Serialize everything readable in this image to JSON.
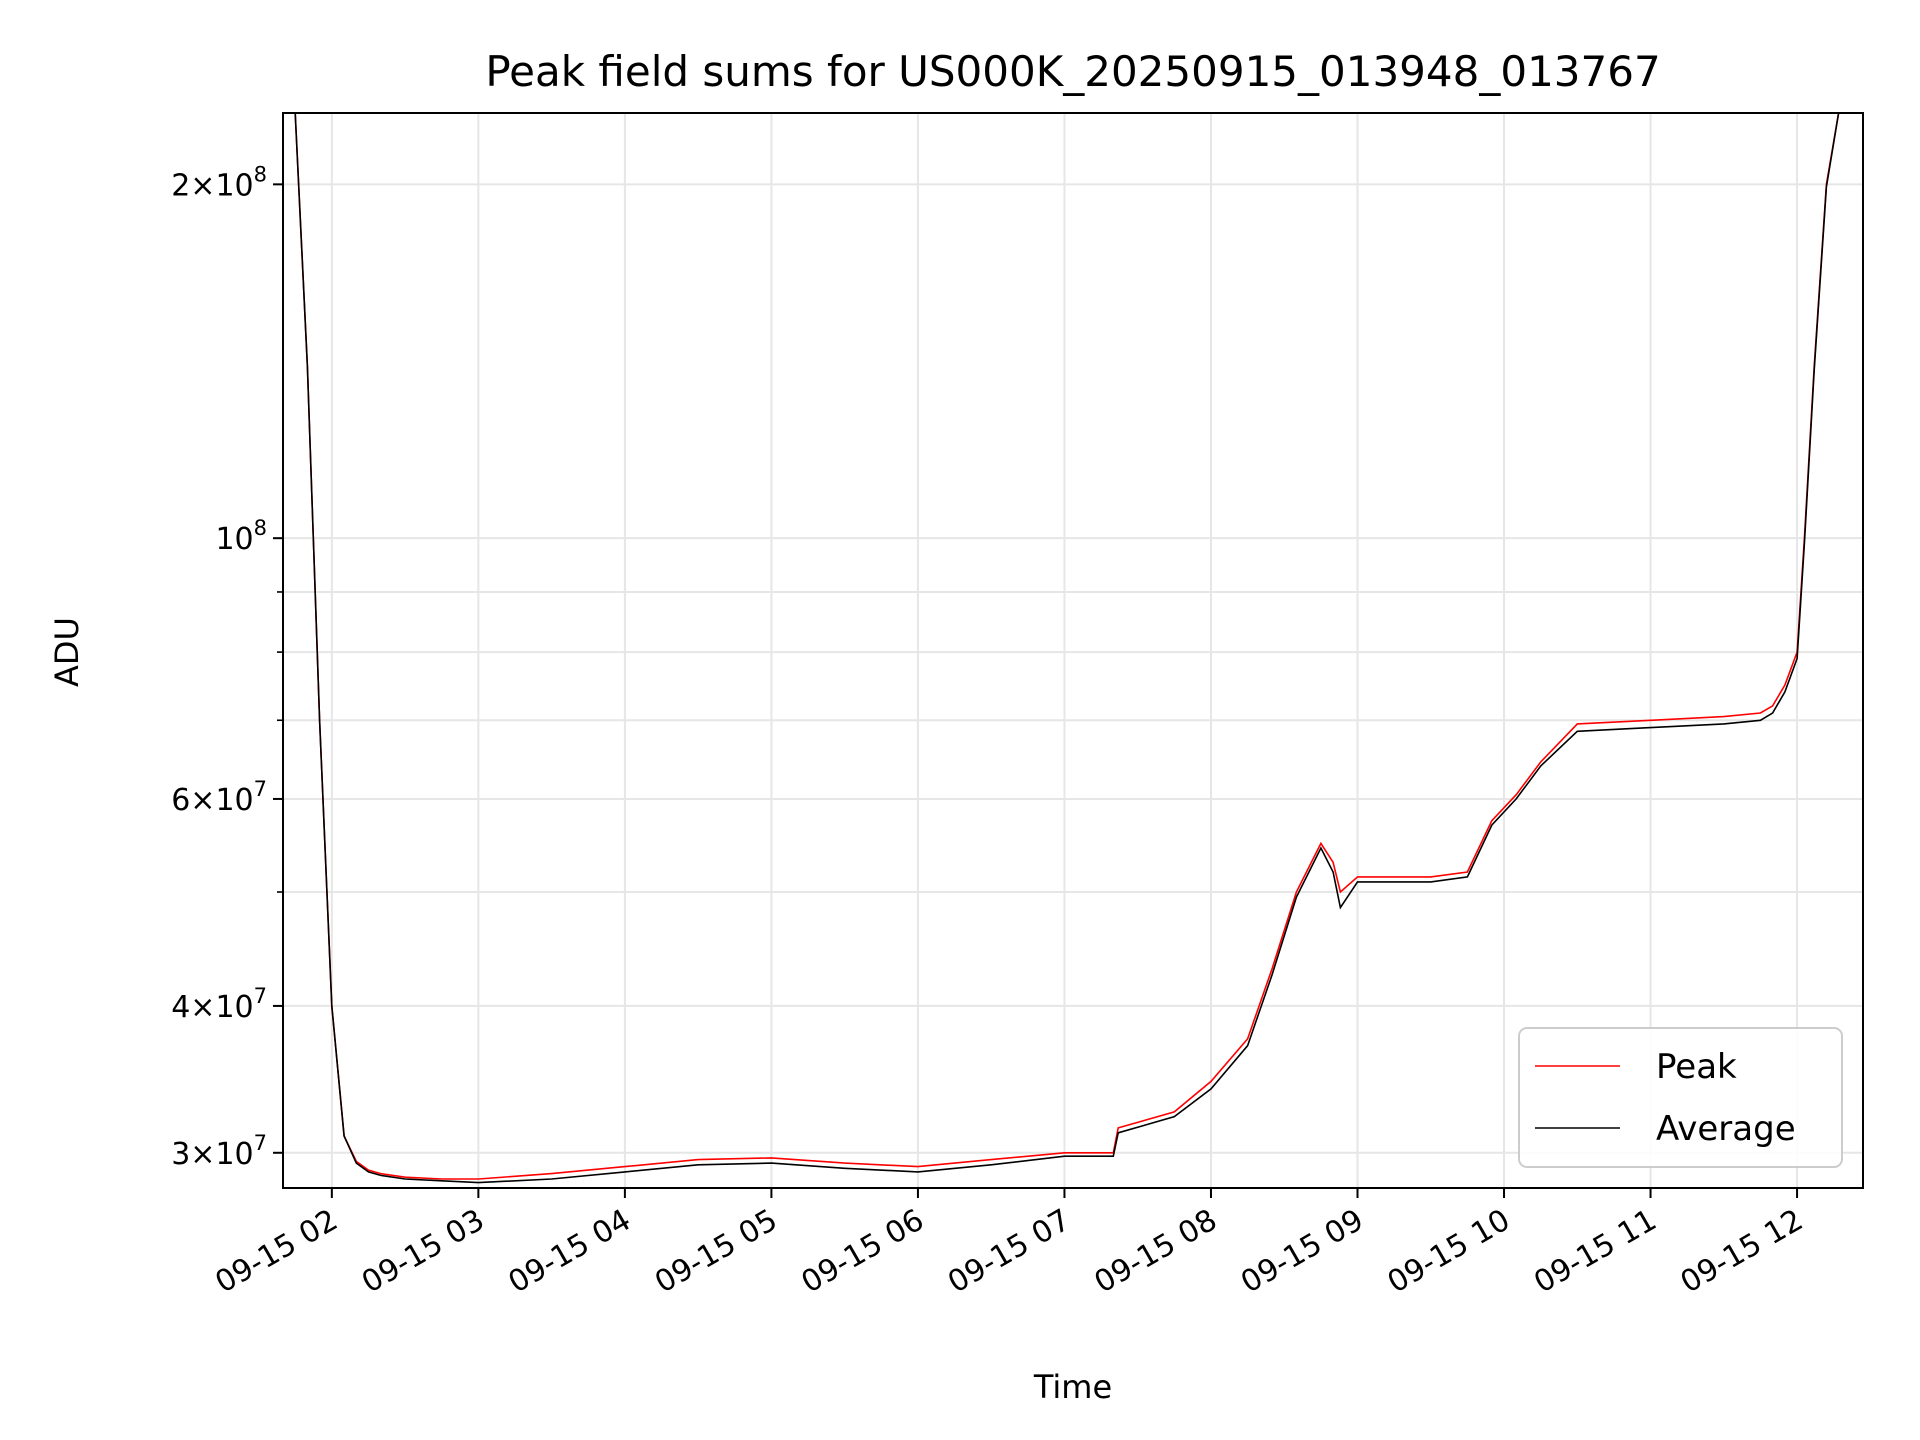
{
  "chart_data": {
    "type": "line",
    "title": "Peak field sums for US000K_20250915_013948_013767",
    "xlabel": "Time",
    "ylabel": "ADU",
    "yscale": "log",
    "xlim": [
      "2025-09-15T01:40",
      "2025-09-15T12:27"
    ],
    "ylim": [
      28000000,
      230000000
    ],
    "grid": true,
    "legend_position": "lower-right",
    "x_ticks": [
      "09-15 02",
      "09-15 03",
      "09-15 04",
      "09-15 05",
      "09-15 06",
      "09-15 07",
      "09-15 08",
      "09-15 09",
      "09-15 10",
      "09-15 11",
      "09-15 12"
    ],
    "x_tick_times": [
      "2025-09-15T02:00",
      "2025-09-15T03:00",
      "2025-09-15T04:00",
      "2025-09-15T05:00",
      "2025-09-15T06:00",
      "2025-09-15T07:00",
      "2025-09-15T08:00",
      "2025-09-15T09:00",
      "2025-09-15T10:00",
      "2025-09-15T11:00",
      "2025-09-15T12:00"
    ],
    "y_ticks": [
      {
        "value": 200000000,
        "mantissa": "2",
        "exponent": "8"
      },
      {
        "value": 100000000,
        "mantissa": "",
        "exponent": "8"
      },
      {
        "value": 60000000,
        "mantissa": "6",
        "exponent": "7"
      },
      {
        "value": 40000000,
        "mantissa": "4",
        "exponent": "7"
      },
      {
        "value": 30000000,
        "mantissa": "3",
        "exponent": "7"
      }
    ],
    "y_ticks_minor": [
      50000000,
      70000000,
      80000000,
      90000000
    ],
    "series": [
      {
        "name": "Peak",
        "color": "#ff0000",
        "x": [
          "2025-09-15T01:40",
          "2025-09-15T01:45",
          "2025-09-15T01:50",
          "2025-09-15T01:55",
          "2025-09-15T02:00",
          "2025-09-15T02:05",
          "2025-09-15T02:10",
          "2025-09-15T02:15",
          "2025-09-15T02:20",
          "2025-09-15T02:30",
          "2025-09-15T02:45",
          "2025-09-15T03:00",
          "2025-09-15T03:30",
          "2025-09-15T04:00",
          "2025-09-15T04:30",
          "2025-09-15T05:00",
          "2025-09-15T05:30",
          "2025-09-15T06:00",
          "2025-09-15T06:30",
          "2025-09-15T07:00",
          "2025-09-15T07:20",
          "2025-09-15T07:22",
          "2025-09-15T07:45",
          "2025-09-15T08:00",
          "2025-09-15T08:15",
          "2025-09-15T08:25",
          "2025-09-15T08:35",
          "2025-09-15T08:45",
          "2025-09-15T08:50",
          "2025-09-15T08:53",
          "2025-09-15T09:00",
          "2025-09-15T09:30",
          "2025-09-15T09:45",
          "2025-09-15T09:55",
          "2025-09-15T10:05",
          "2025-09-15T10:15",
          "2025-09-15T10:30",
          "2025-09-15T11:00",
          "2025-09-15T11:30",
          "2025-09-15T11:45",
          "2025-09-15T11:50",
          "2025-09-15T11:55",
          "2025-09-15T12:00",
          "2025-09-15T12:03",
          "2025-09-15T12:07",
          "2025-09-15T12:12",
          "2025-09-15T12:17",
          "2025-09-15T12:22",
          "2025-09-15T12:27"
        ],
        "y": [
          230000000,
          230000000,
          140000000,
          70000000,
          40000000,
          31000000,
          29500000,
          29000000,
          28800000,
          28600000,
          28500000,
          28500000,
          28800000,
          29200000,
          29600000,
          29700000,
          29400000,
          29200000,
          29600000,
          30000000,
          30000000,
          31500000,
          32500000,
          34500000,
          37500000,
          43000000,
          50000000,
          55000000,
          53000000,
          50000000,
          51500000,
          51500000,
          52000000,
          57500000,
          60500000,
          64500000,
          69500000,
          70000000,
          70500000,
          71000000,
          72000000,
          75000000,
          80000000,
          100000000,
          140000000,
          200000000,
          230000000,
          230000000,
          230000000
        ]
      },
      {
        "name": "Average",
        "color": "#000000",
        "x": [
          "2025-09-15T01:40",
          "2025-09-15T01:45",
          "2025-09-15T01:50",
          "2025-09-15T01:55",
          "2025-09-15T02:00",
          "2025-09-15T02:05",
          "2025-09-15T02:10",
          "2025-09-15T02:15",
          "2025-09-15T02:20",
          "2025-09-15T02:30",
          "2025-09-15T02:45",
          "2025-09-15T03:00",
          "2025-09-15T03:30",
          "2025-09-15T04:00",
          "2025-09-15T04:30",
          "2025-09-15T05:00",
          "2025-09-15T05:30",
          "2025-09-15T06:00",
          "2025-09-15T06:30",
          "2025-09-15T07:00",
          "2025-09-15T07:20",
          "2025-09-15T07:22",
          "2025-09-15T07:45",
          "2025-09-15T08:00",
          "2025-09-15T08:15",
          "2025-09-15T08:25",
          "2025-09-15T08:35",
          "2025-09-15T08:45",
          "2025-09-15T08:50",
          "2025-09-15T08:53",
          "2025-09-15T09:00",
          "2025-09-15T09:30",
          "2025-09-15T09:45",
          "2025-09-15T09:55",
          "2025-09-15T10:05",
          "2025-09-15T10:15",
          "2025-09-15T10:30",
          "2025-09-15T11:00",
          "2025-09-15T11:30",
          "2025-09-15T11:45",
          "2025-09-15T11:50",
          "2025-09-15T11:55",
          "2025-09-15T12:00",
          "2025-09-15T12:03",
          "2025-09-15T12:07",
          "2025-09-15T12:12",
          "2025-09-15T12:17",
          "2025-09-15T12:22",
          "2025-09-15T12:27"
        ],
        "y": [
          230000000,
          230000000,
          140000000,
          70000000,
          40000000,
          31000000,
          29400000,
          28900000,
          28700000,
          28500000,
          28400000,
          28300000,
          28500000,
          28900000,
          29300000,
          29400000,
          29100000,
          28900000,
          29300000,
          29800000,
          29800000,
          31200000,
          32200000,
          34000000,
          37000000,
          42500000,
          49500000,
          54500000,
          52000000,
          48500000,
          51000000,
          51000000,
          51500000,
          57000000,
          60000000,
          64000000,
          68500000,
          69000000,
          69500000,
          70000000,
          71000000,
          74000000,
          79000000,
          99000000,
          139000000,
          199000000,
          230000000,
          230000000,
          230000000
        ]
      }
    ]
  }
}
